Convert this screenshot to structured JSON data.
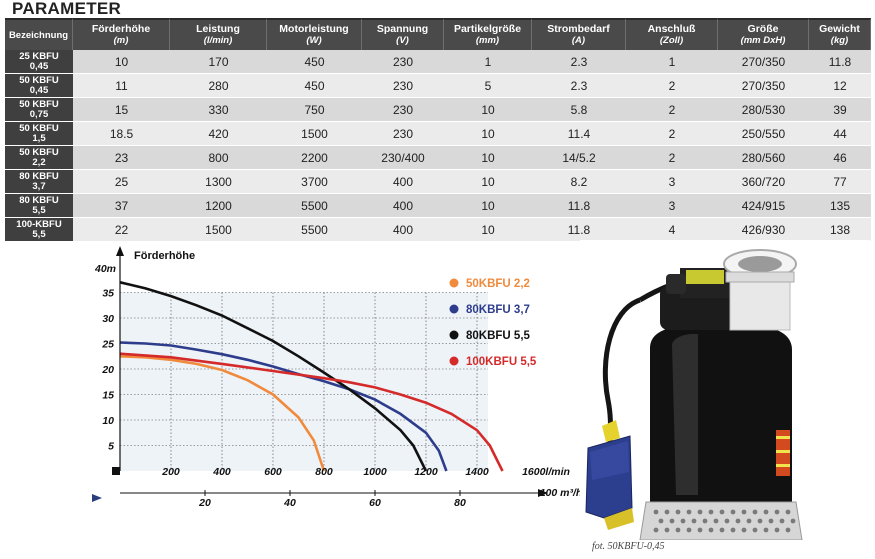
{
  "title": "PARAMETER",
  "table": {
    "header_model": "Bezeichnung",
    "columns": [
      {
        "label": "Förderhöhe",
        "unit": "(m)"
      },
      {
        "label": "Leistung",
        "unit": "(l/min)"
      },
      {
        "label": "Motorleistung",
        "unit": "(W)"
      },
      {
        "label": "Spannung",
        "unit": "(V)"
      },
      {
        "label": "Partikelgröße",
        "unit": "(mm)"
      },
      {
        "label": "Strombedarf",
        "unit": "(A)"
      },
      {
        "label": "Anschluß",
        "unit": "(Zoll)"
      },
      {
        "label": "Größe",
        "unit": "(mm DxH)"
      },
      {
        "label": "Gewicht",
        "unit": "(kg)"
      }
    ],
    "rows": [
      {
        "model_top": "25 KBFU",
        "model_bottom": "0,45",
        "values": [
          "10",
          "170",
          "450",
          "230",
          "1",
          "2.3",
          "1",
          "270/350",
          "11.8"
        ]
      },
      {
        "model_top": "50 KBFU",
        "model_bottom": "0,45",
        "values": [
          "11",
          "280",
          "450",
          "230",
          "5",
          "2.3",
          "2",
          "270/350",
          "12"
        ]
      },
      {
        "model_top": "50 KBFU",
        "model_bottom": "0,75",
        "values": [
          "15",
          "330",
          "750",
          "230",
          "10",
          "5.8",
          "2",
          "280/530",
          "39"
        ]
      },
      {
        "model_top": "50 KBFU",
        "model_bottom": "1,5",
        "values": [
          "18.5",
          "420",
          "1500",
          "230",
          "10",
          "11.4",
          "2",
          "250/550",
          "44"
        ]
      },
      {
        "model_top": "50 KBFU",
        "model_bottom": "2,2",
        "values": [
          "23",
          "800",
          "2200",
          "230/400",
          "10",
          "14/5.2",
          "2",
          "280/560",
          "46"
        ]
      },
      {
        "model_top": "80 KBFU",
        "model_bottom": "3,7",
        "values": [
          "25",
          "1300",
          "3700",
          "400",
          "10",
          "8.2",
          "3",
          "360/720",
          "77"
        ]
      },
      {
        "model_top": "80 KBFU",
        "model_bottom": "5,5",
        "values": [
          "37",
          "1200",
          "5500",
          "400",
          "10",
          "11.8",
          "3",
          "424/915",
          "135"
        ]
      },
      {
        "model_top": "100-KBFU",
        "model_bottom": "5,5",
        "values": [
          "22",
          "1500",
          "5500",
          "400",
          "10",
          "11.8",
          "4",
          "426/930",
          "138"
        ]
      }
    ]
  },
  "chart_data": {
    "type": "line",
    "ylabel": "Förderhöhe",
    "y_top_label": "40m",
    "ylim": [
      0,
      40
    ],
    "xlim": [
      0,
      1600
    ],
    "y_ticks": [
      "5",
      "10",
      "15",
      "20",
      "25",
      "30",
      "35"
    ],
    "x_ticks": [
      "200",
      "400",
      "600",
      "800",
      "1000",
      "1200",
      "1400"
    ],
    "x_end_label": "1600l/min",
    "x2_ticks": [
      "20",
      "40",
      "60",
      "80"
    ],
    "x2_end_label": "100 m³/h",
    "grid": true,
    "series": [
      {
        "name": "50KBFU 2,2",
        "color": "#f08a3c",
        "points": [
          [
            0,
            22.5
          ],
          [
            100,
            22.3
          ],
          [
            200,
            21.8
          ],
          [
            300,
            21
          ],
          [
            400,
            19.8
          ],
          [
            500,
            17.8
          ],
          [
            600,
            15
          ],
          [
            700,
            10.5
          ],
          [
            760,
            6
          ],
          [
            800,
            0
          ]
        ]
      },
      {
        "name": "80KBFU 3,7",
        "color": "#2e3c8c",
        "points": [
          [
            0,
            25.2
          ],
          [
            100,
            25
          ],
          [
            200,
            24.6
          ],
          [
            300,
            23.8
          ],
          [
            400,
            22.9
          ],
          [
            500,
            21.8
          ],
          [
            600,
            20.5
          ],
          [
            700,
            19
          ],
          [
            800,
            17.6
          ],
          [
            900,
            16
          ],
          [
            1000,
            14
          ],
          [
            1100,
            11.2
          ],
          [
            1200,
            7.5
          ],
          [
            1250,
            4
          ],
          [
            1280,
            0
          ]
        ]
      },
      {
        "name": "80KBFU 5,5",
        "color": "#111111",
        "points": [
          [
            0,
            37
          ],
          [
            100,
            35.8
          ],
          [
            200,
            34.3
          ],
          [
            300,
            32.5
          ],
          [
            400,
            30.5
          ],
          [
            500,
            28
          ],
          [
            600,
            25.5
          ],
          [
            700,
            22.5
          ],
          [
            800,
            19.3
          ],
          [
            900,
            16
          ],
          [
            1000,
            12.3
          ],
          [
            1100,
            8
          ],
          [
            1150,
            5
          ],
          [
            1200,
            0
          ]
        ]
      },
      {
        "name": "100KBFU 5,5",
        "color": "#d42a2a",
        "points": [
          [
            0,
            23
          ],
          [
            200,
            22.3
          ],
          [
            400,
            21
          ],
          [
            600,
            19.6
          ],
          [
            800,
            18.2
          ],
          [
            900,
            17.4
          ],
          [
            1000,
            16.4
          ],
          [
            1100,
            15
          ],
          [
            1200,
            13.4
          ],
          [
            1300,
            11.2
          ],
          [
            1400,
            8
          ],
          [
            1450,
            5
          ],
          [
            1500,
            0
          ]
        ]
      }
    ]
  },
  "photo_caption": "fot. 50KBFU-0,45"
}
